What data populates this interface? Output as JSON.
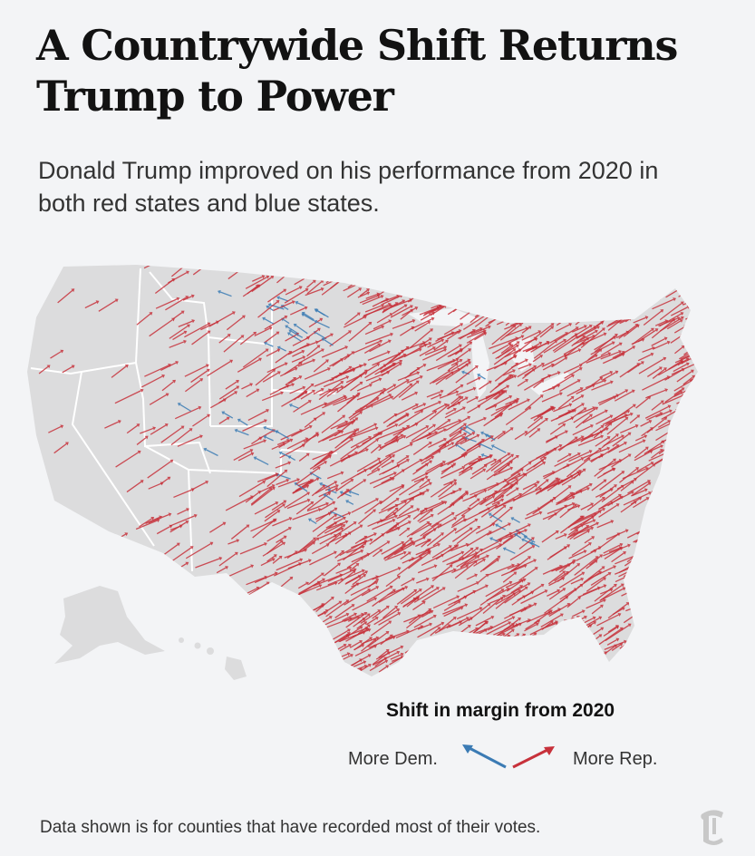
{
  "headline": "A Countrywide Shift Returns Trump to Power",
  "dek": "Donald Trump improved on his performance from 2020 in both red states and blue states.",
  "legend": {
    "title": "Shift in margin from 2020",
    "dem_label": "More Dem.",
    "rep_label": "More Rep."
  },
  "footnote": "Data shown is for counties that have recorded most of their votes.",
  "colors": {
    "rep": "#c7313b",
    "dem": "#3b7bb4",
    "land": "#dcdcdd",
    "border": "#ffffff",
    "background": "#f3f4f6"
  },
  "logo_icon": "nyt-t-logo-icon"
}
